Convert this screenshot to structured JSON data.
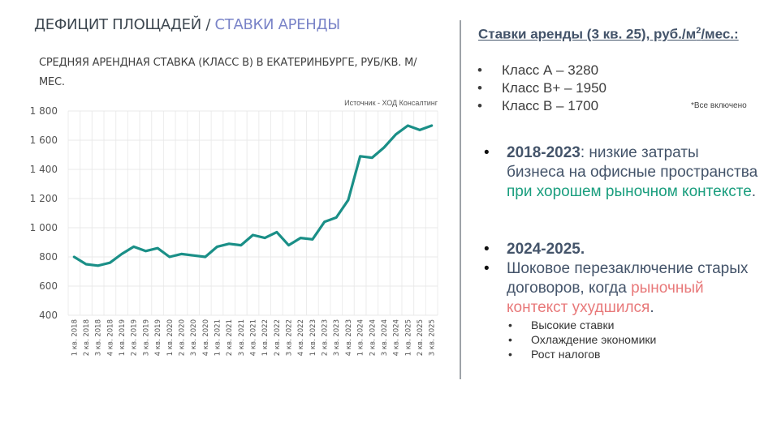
{
  "header": {
    "title_main": "ДЕФИЦИТ ПЛОЩАДЕЙ / ",
    "title_accent": "СТАВКИ АРЕНДЫ",
    "accent_color": "#7a84c8"
  },
  "chart_panel": {
    "subtitle": "СРЕДНЯЯ АРЕНДНАЯ СТАВКА (КЛАСС B) В ЕКАТЕРИНБУРГЕ, РУБ/КВ. М/МЕС.",
    "source": "Источник - ХОД Консалтинг",
    "line_color": "#1a8f87"
  },
  "chart_data": {
    "type": "line",
    "title": "СРЕДНЯЯ АРЕНДНАЯ СТАВКА (КЛАСС B) В ЕКАТЕРИНБУРГЕ, РУБ/КВ. М/МЕС.",
    "xlabel": "",
    "ylabel": "",
    "ylim": [
      400,
      1800
    ],
    "yticks": [
      400,
      600,
      800,
      1000,
      1200,
      1400,
      1600,
      1800
    ],
    "ytick_labels": [
      "400",
      "600",
      "800",
      "1 000",
      "1 200",
      "1 400",
      "1 600",
      "1 800"
    ],
    "grid": true,
    "legend": "none",
    "annotation": "Источник - ХОД Консалтинг",
    "categories": [
      "1 кв. 2018",
      "2 кв. 2018",
      "3 кв. 2018",
      "4 кв. 2018",
      "1 кв. 2019",
      "2 кв. 2019",
      "3 кв. 2019",
      "4 кв. 2019",
      "1 кв. 2020",
      "2 кв. 2020",
      "3 кв. 2020",
      "4 кв. 2020",
      "1 кв. 2021",
      "2 кв. 2021",
      "3 кв. 2021",
      "4 кв. 2021",
      "1 кв. 2022",
      "2 кв. 2022",
      "3 кв. 2022",
      "4 кв. 2022",
      "1 кв. 2023",
      "2 кв. 2023",
      "3 кв. 2023",
      "4 кв. 2023",
      "1 кв. 2024",
      "2 кв. 2024",
      "3 кв. 2024",
      "4 кв. 2024",
      "1 кв. 2025",
      "2 кв. 2025",
      "3 кв. 2025"
    ],
    "series": [
      {
        "name": "Класс B",
        "values": [
          800,
          750,
          740,
          760,
          820,
          870,
          840,
          860,
          800,
          820,
          810,
          800,
          870,
          890,
          880,
          950,
          930,
          970,
          880,
          930,
          920,
          1040,
          1070,
          1190,
          1490,
          1480,
          1550,
          1640,
          1700,
          1670,
          1700
        ]
      }
    ]
  },
  "right_panel": {
    "heading_pre": "Ставки аренды (3 кв. 25), руб./м",
    "heading_sup": "2",
    "heading_post": "/мес.:",
    "rates": [
      {
        "bullet": "•",
        "label": "Класс А – 3280"
      },
      {
        "bullet": "•",
        "label": "Класс В+ – 1950"
      },
      {
        "bullet": "•",
        "label": "Класс В – 1700"
      }
    ],
    "note": "*Все включено",
    "point1": {
      "bold": "2018-2023",
      "text": ": низкие затраты бизнеса на офисные пространства ",
      "highlight": "при хорошем рыночном контексте",
      "tail": ".",
      "highlight_color": "#1a9e7e"
    },
    "point2": {
      "bold": "2024-2025."
    },
    "point3": {
      "text": "Шоковое перезаключение старых договоров, когда ",
      "highlight": "рыночный контекст ухудшился",
      "tail": ".",
      "highlight_color": "#e8797a"
    },
    "reasons": [
      {
        "bullet": "•",
        "label": "Высокие ставки"
      },
      {
        "bullet": "•",
        "label": "Охлаждение экономики"
      },
      {
        "bullet": "•",
        "label": "Рост налогов"
      }
    ]
  }
}
